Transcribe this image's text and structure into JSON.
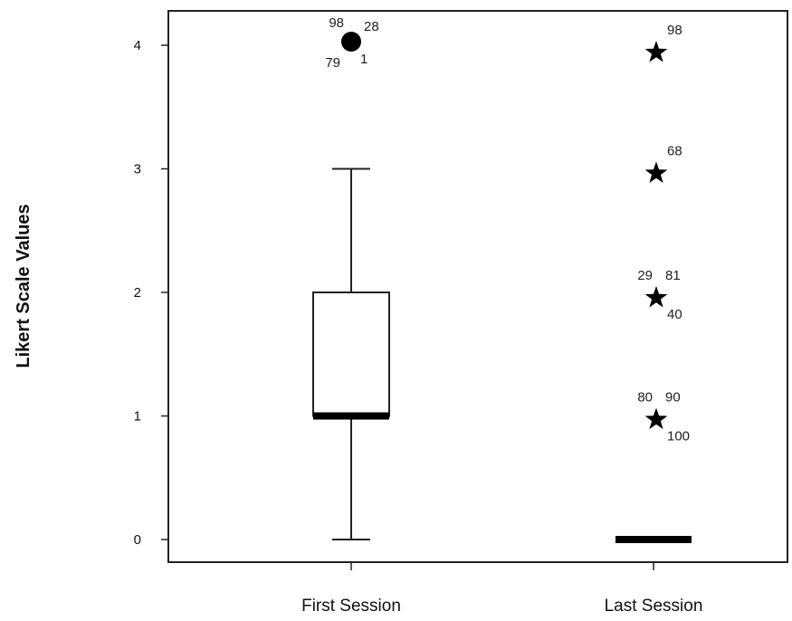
{
  "chart_data": {
    "type": "boxplot",
    "title": "",
    "xlabel": "",
    "ylabel": "Likert  Scale Values",
    "ylim": [
      0,
      4
    ],
    "yticks": [
      "0",
      "1",
      "2",
      "3",
      "4"
    ],
    "grid": false,
    "legend": "none",
    "categories": [
      "First Session",
      "Last Session"
    ],
    "boxes": [
      {
        "category": "First Session",
        "min": 0,
        "q1": 1,
        "median": 1,
        "q3": 2,
        "max": 3,
        "outliers": [
          {
            "y": 4,
            "marker": "circle",
            "labels": [
              "98",
              "28",
              "79",
              "1"
            ]
          }
        ]
      },
      {
        "category": "Last Session",
        "min": 0,
        "q1": 0,
        "median": 0,
        "q3": 0,
        "max": 0,
        "outliers": [
          {
            "y": 4,
            "marker": "star",
            "labels": [
              "98"
            ]
          },
          {
            "y": 3,
            "marker": "star",
            "labels": [
              "68"
            ]
          },
          {
            "y": 2,
            "marker": "star",
            "labels": [
              "29",
              "81",
              "40"
            ]
          },
          {
            "y": 1,
            "marker": "star",
            "labels": [
              "80",
              "90",
              "100"
            ]
          }
        ]
      }
    ]
  }
}
